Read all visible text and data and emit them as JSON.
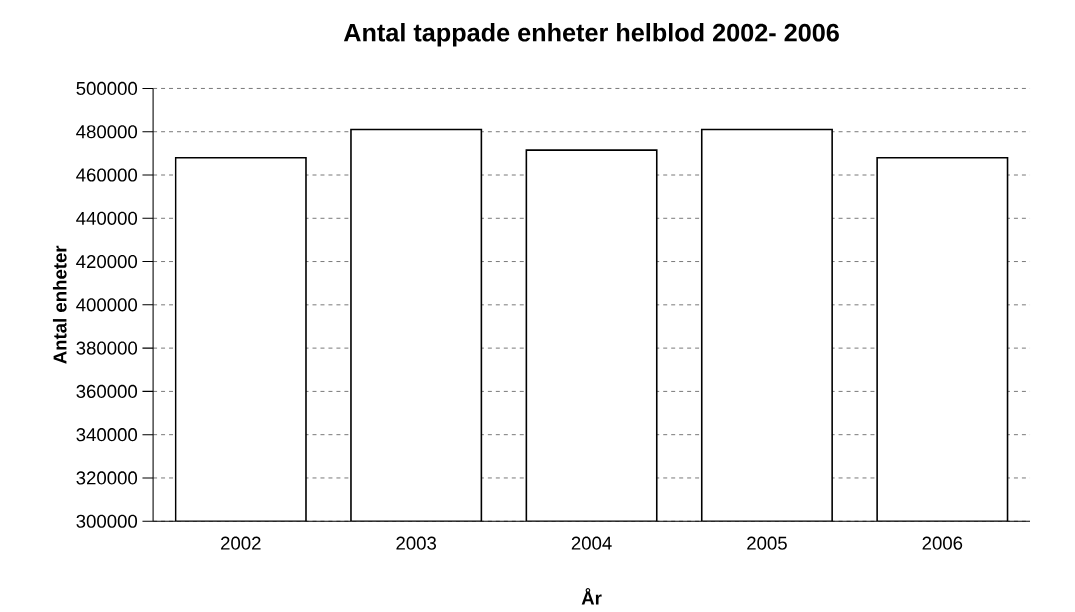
{
  "chart_data": {
    "type": "bar",
    "title": "Antal tappade enheter helblod 2002- 2006",
    "xlabel": "År",
    "ylabel": "Antal enheter",
    "categories": [
      "2002",
      "2003",
      "2004",
      "2005",
      "2006"
    ],
    "values": [
      468000,
      481000,
      471500,
      481000,
      468000
    ],
    "color": "#ffffff",
    "ylim": [
      300000,
      500000
    ],
    "yticks": [
      300000,
      320000,
      340000,
      360000,
      380000,
      400000,
      420000,
      440000,
      460000,
      480000,
      500000
    ],
    "grid": "y"
  }
}
